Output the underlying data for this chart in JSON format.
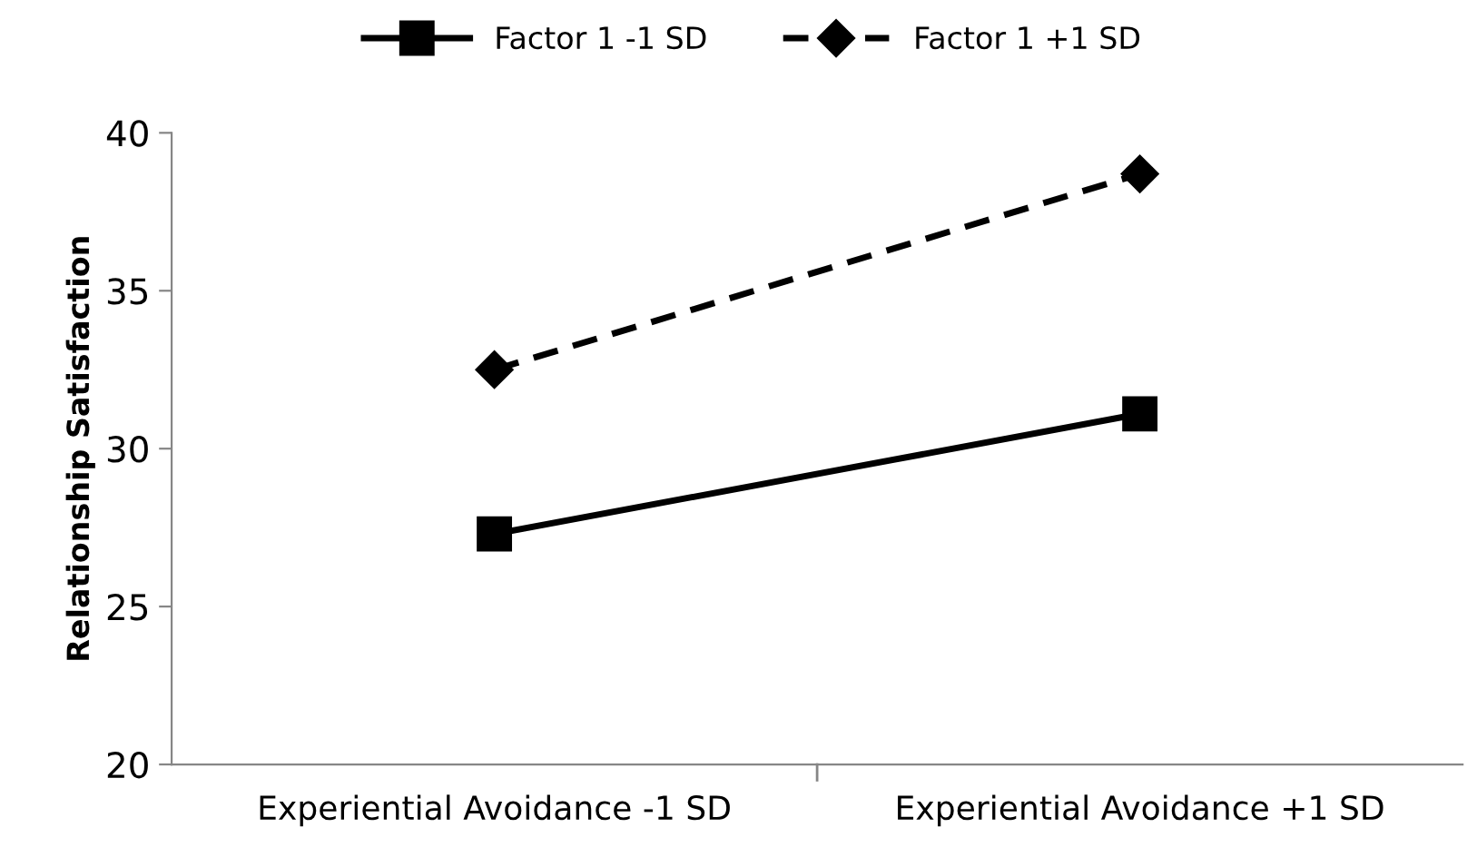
{
  "chart_data": {
    "type": "line",
    "ylabel": "Relationship Satisfaction",
    "categories": [
      "Experiential Avoidance -1 SD",
      "Experiential Avoidance +1 SD"
    ],
    "series": [
      {
        "name": "Factor 1 -1 SD",
        "color": "#000000",
        "values": [
          27.3,
          31.1
        ],
        "marker": "square",
        "line_style": "solid"
      },
      {
        "name": "Factor 1 +1 SD",
        "color": "#000000",
        "values": [
          32.5,
          38.7
        ],
        "marker": "diamond",
        "line_style": "dashed"
      }
    ],
    "ylim": [
      20,
      40
    ],
    "yticks": [
      20,
      25,
      30,
      35,
      40
    ],
    "grid": false,
    "legend": "top"
  }
}
